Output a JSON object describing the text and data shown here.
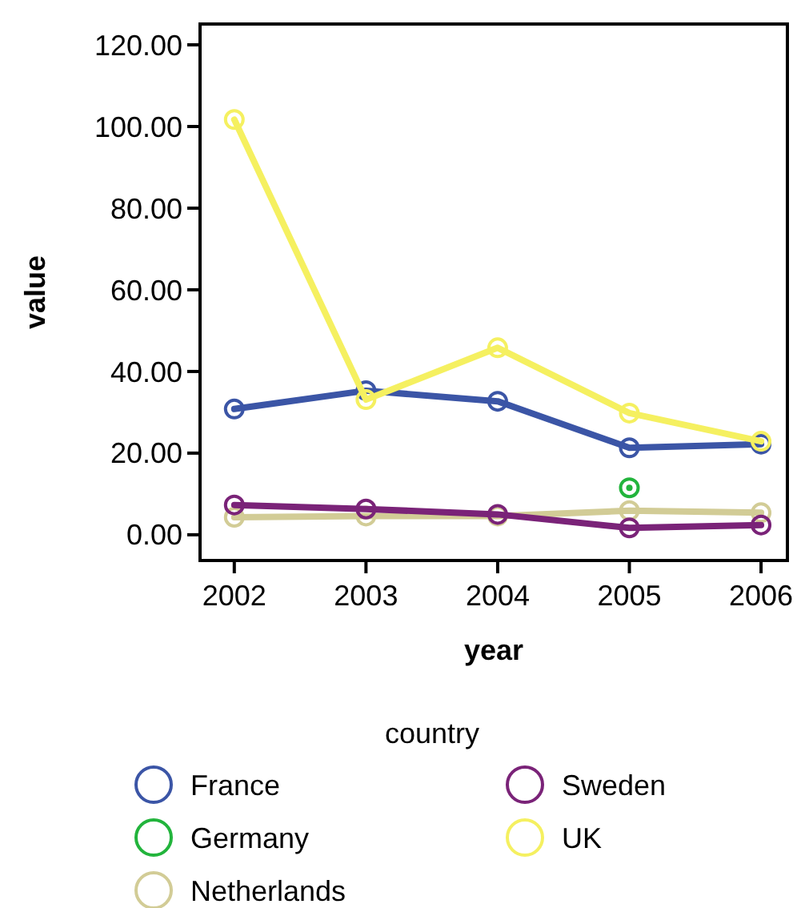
{
  "chart_data": {
    "type": "line",
    "xlabel": "year",
    "ylabel": "value",
    "legend_title": "country",
    "legend": "bottom",
    "marker": "circle",
    "grid": false,
    "x": [
      2002,
      2003,
      2004,
      2005,
      2006
    ],
    "xlim": [
      2001.74,
      2006.2
    ],
    "xticks": [
      2002,
      2003,
      2004,
      2005,
      2006
    ],
    "ylim": [
      -6.3,
      125.1
    ],
    "yticks": [
      {
        "value": 0,
        "label": "0.00"
      },
      {
        "value": 20,
        "label": "20.00"
      },
      {
        "value": 40,
        "label": "40.00"
      },
      {
        "value": 60,
        "label": "60.00"
      },
      {
        "value": 80,
        "label": "80.00"
      },
      {
        "value": 100,
        "label": "100.00"
      },
      {
        "value": 120,
        "label": "120.00"
      }
    ],
    "series": [
      {
        "name": "France",
        "color": "#3b55a6",
        "values": [
          30.8,
          35.3,
          32.7,
          21.3,
          22.2
        ]
      },
      {
        "name": "Germany",
        "color": "#22b43c",
        "values": [
          null,
          null,
          null,
          11.5,
          null
        ]
      },
      {
        "name": "Netherlands",
        "color": "#d2cc96",
        "values": [
          4.3,
          4.6,
          4.6,
          5.9,
          5.4
        ]
      },
      {
        "name": "Sweden",
        "color": "#7a2378",
        "values": [
          7.3,
          6.3,
          5.0,
          1.7,
          2.4
        ]
      },
      {
        "name": "UK",
        "color": "#f5f060",
        "values": [
          101.7,
          33.1,
          45.8,
          29.8,
          22.9
        ]
      }
    ]
  }
}
